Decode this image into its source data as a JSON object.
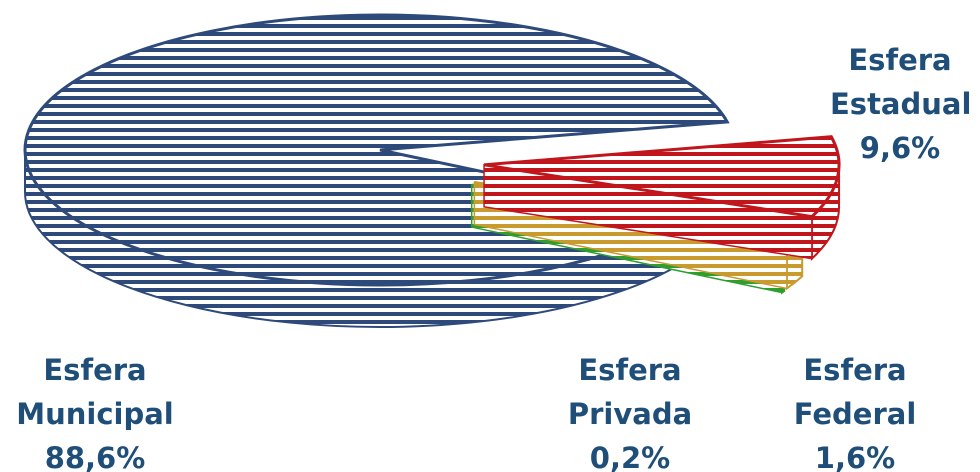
{
  "chart_data": {
    "type": "pie",
    "style": "3d-exploded",
    "slices": [
      {
        "category": "Esfera",
        "name": "Municipal",
        "value": 88.6,
        "label": "88,6%",
        "color": "#2e4a7a"
      },
      {
        "category": "Esfera",
        "name": "Estadual",
        "value": 9.6,
        "label": "9,6%",
        "color": "#c0161c"
      },
      {
        "category": "Esfera",
        "name": "Federal",
        "value": 1.6,
        "label": "1,6%",
        "color": "#c99a2e"
      },
      {
        "category": "Esfera",
        "name": "Privada",
        "value": 0.2,
        "label": "0,2%",
        "color": "#2e9e2e"
      }
    ]
  }
}
